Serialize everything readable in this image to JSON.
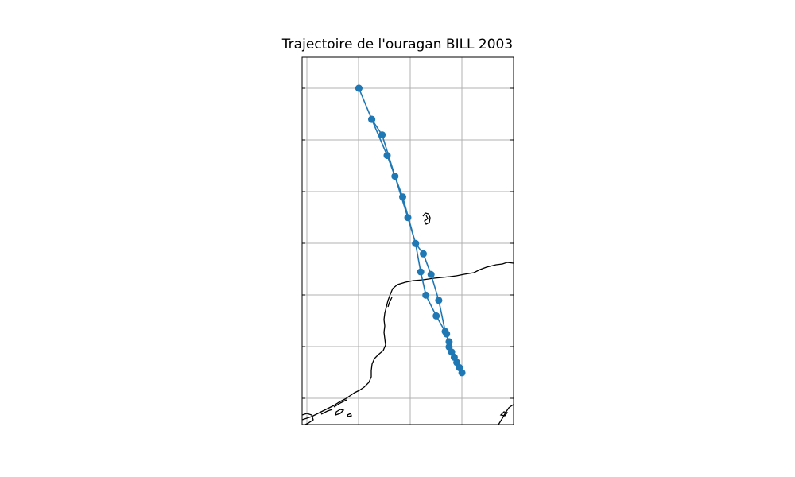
{
  "title": "Trajectoire de l'ouragan BILL 2003",
  "track": {
    "color": "#1f77b4",
    "points": [
      [
        -97.0,
        33.0
      ],
      [
        -96.5,
        32.4
      ],
      [
        -95.9,
        31.7
      ],
      [
        -95.3,
        30.9
      ],
      [
        -94.8,
        30.0
      ],
      [
        -94.6,
        29.45
      ],
      [
        -94.4,
        29.0
      ],
      [
        -94.0,
        28.6
      ],
      [
        -93.6,
        28.25
      ],
      [
        -93.5,
        28.0
      ],
      [
        -93.4,
        27.9
      ],
      [
        -93.2,
        27.7
      ],
      [
        -93.0,
        27.5
      ],
      [
        -93.1,
        27.6
      ],
      [
        -93.3,
        27.8
      ],
      [
        -93.5,
        28.1
      ],
      [
        -93.65,
        28.3
      ],
      [
        -93.9,
        28.9
      ],
      [
        -94.2,
        29.4
      ],
      [
        -94.5,
        29.8
      ],
      [
        -94.8,
        30.0
      ],
      [
        -95.1,
        30.5
      ],
      [
        -95.6,
        31.3
      ],
      [
        -96.1,
        32.1
      ],
      [
        -96.5,
        32.4
      ],
      [
        -97.0,
        33.0
      ]
    ]
  },
  "map_extent": {
    "lon": [
      -99.2,
      -91.0
    ],
    "lat": [
      26.5,
      33.6
    ]
  }
}
